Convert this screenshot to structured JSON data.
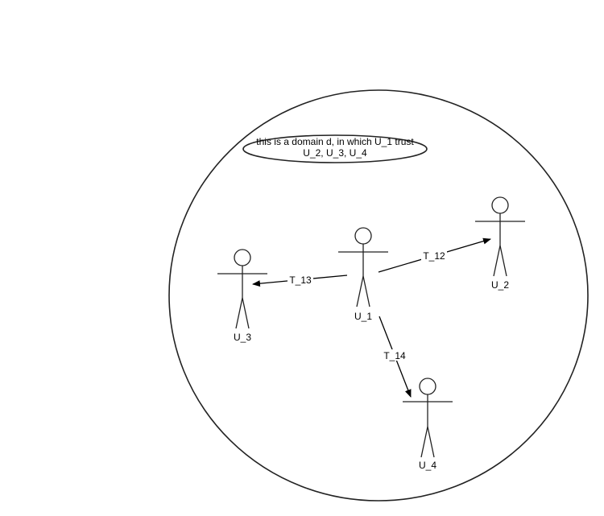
{
  "note": {
    "line1": "this is a domain d, in which U_1 trust",
    "line2": "U_2, U_3, U_4"
  },
  "actors": {
    "u1": "U_1",
    "u2": "U_2",
    "u3": "U_3",
    "u4": "U_4"
  },
  "edges": {
    "t12": "T_12",
    "t13": "T_13",
    "t14": "T_14"
  }
}
